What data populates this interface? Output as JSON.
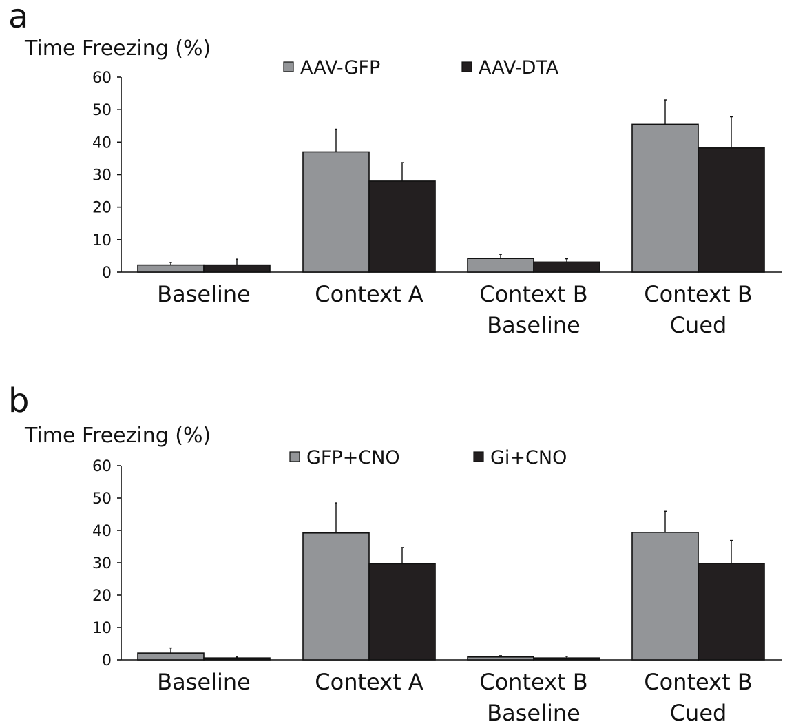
{
  "chart_data": [
    {
      "type": "bar",
      "panel_label": "a",
      "ylabel": "Time Freezing (%)",
      "ylim": [
        0,
        60
      ],
      "yticks": [
        0,
        10,
        20,
        30,
        40,
        50,
        60
      ],
      "categories": [
        [
          "Baseline"
        ],
        [
          "Context A"
        ],
        [
          "Context B",
          "Baseline"
        ],
        [
          "Context B",
          "Cued"
        ]
      ],
      "series": [
        {
          "name": "AAV-GFP",
          "color": "#939598",
          "values": [
            2.2,
            37.0,
            4.2,
            45.5
          ],
          "errors": [
            0.8,
            7.0,
            1.3,
            7.5
          ]
        },
        {
          "name": "AAV-DTA",
          "color": "#231f20",
          "values": [
            2.2,
            28.0,
            3.1,
            38.2
          ],
          "errors": [
            1.8,
            5.7,
            1.0,
            9.6
          ]
        }
      ],
      "legend_position": "top",
      "grid": false
    },
    {
      "type": "bar",
      "panel_label": "b",
      "ylabel": "Time Freezing (%)",
      "ylim": [
        0,
        60
      ],
      "yticks": [
        0,
        10,
        20,
        30,
        40,
        50,
        60
      ],
      "categories": [
        [
          "Baseline"
        ],
        [
          "Context A"
        ],
        [
          "Context B",
          "Baseline"
        ],
        [
          "Context B",
          "Cued"
        ]
      ],
      "series": [
        {
          "name": "GFP+CNO",
          "color": "#939598",
          "values": [
            2.1,
            39.2,
            0.9,
            39.4
          ],
          "errors": [
            1.6,
            9.3,
            0.4,
            6.5
          ]
        },
        {
          "name": "Gi+CNO",
          "color": "#231f20",
          "values": [
            0.6,
            29.7,
            0.6,
            29.8
          ],
          "errors": [
            0.3,
            5.0,
            0.5,
            7.1
          ]
        }
      ],
      "legend_position": "top",
      "grid": false
    }
  ]
}
